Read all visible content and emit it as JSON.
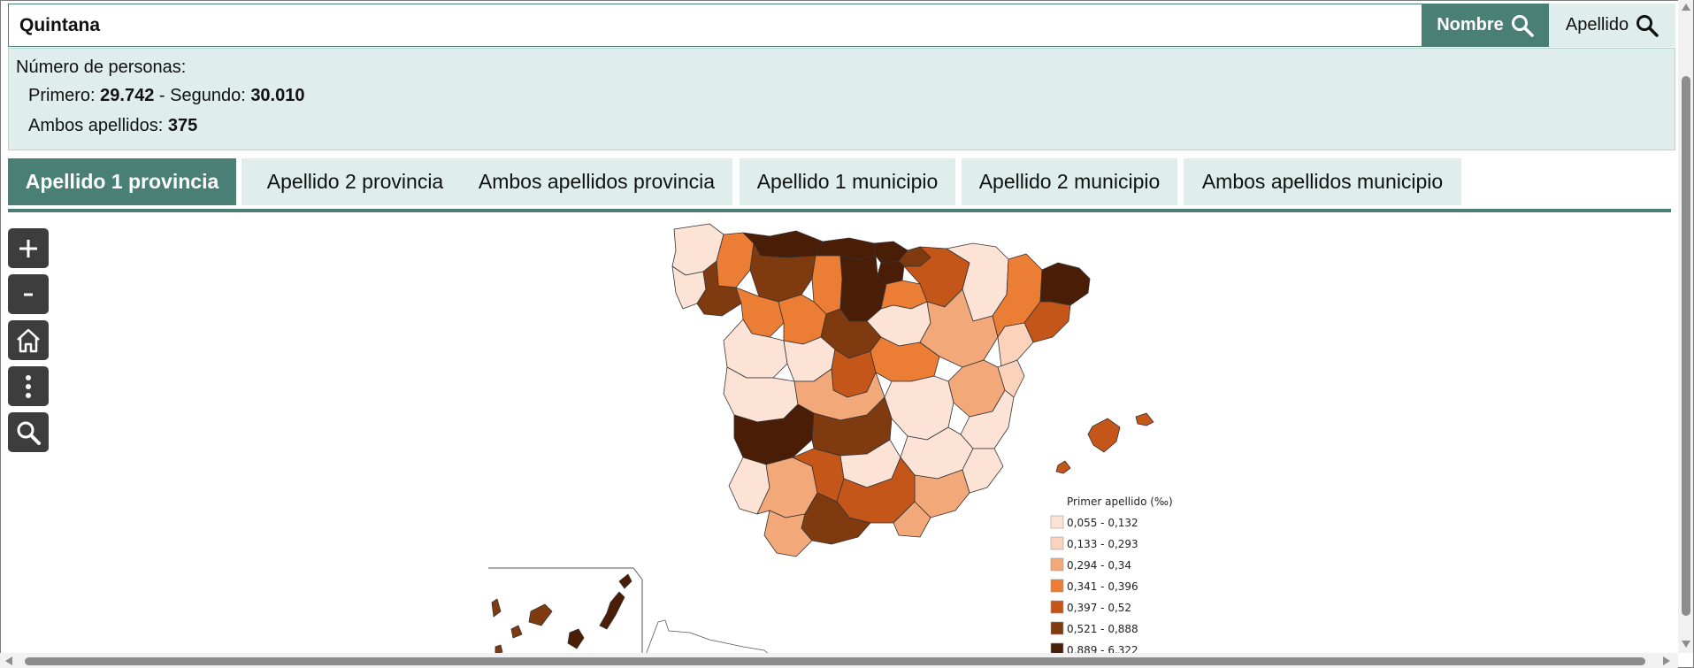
{
  "search": {
    "value": "Quintana",
    "nombre_label": "Nombre",
    "apellido_label": "Apellido"
  },
  "info": {
    "title": "Número de personas:",
    "primero_label": "Primero:",
    "primero_value": "29.742",
    "separator": "-",
    "segundo_label": "Segundo:",
    "segundo_value": "30.010",
    "ambos_label": "Ambos apellidos:",
    "ambos_value": "375"
  },
  "tabs": [
    {
      "label": "Apellido 1 provincia",
      "active": true
    },
    {
      "label": "Apellido 2 provincia",
      "active": false
    },
    {
      "label": "Ambos apellidos provincia",
      "active": false
    },
    {
      "label": "Apellido 1 municipio",
      "active": false
    },
    {
      "label": "Apellido 2 municipio",
      "active": false
    },
    {
      "label": "Ambos apellidos municipio",
      "active": false
    }
  ],
  "tools": {
    "zoom_in": "plus-icon",
    "zoom_out": "minus-icon",
    "home": "home-icon",
    "more": "kebab-icon",
    "search": "search-icon"
  },
  "legend": {
    "title": "Primer apellido (‰)",
    "items": [
      {
        "label": "0,055 - 0,132",
        "color": "#fde3d6"
      },
      {
        "label": "0,133 - 0,293",
        "color": "#fbd3bd"
      },
      {
        "label": "0,294 - 0,34",
        "color": "#f2a879"
      },
      {
        "label": "0,341 - 0,396",
        "color": "#ec7d34"
      },
      {
        "label": "0,397 - 0,52",
        "color": "#c5561a"
      },
      {
        "label": "0,521 - 0,888",
        "color": "#7f3a10"
      },
      {
        "label": "0,889 - 6,322",
        "color": "#4a1d06"
      }
    ]
  },
  "colors": {
    "accent": "#4a7f75",
    "panel": "#dfeeed"
  }
}
